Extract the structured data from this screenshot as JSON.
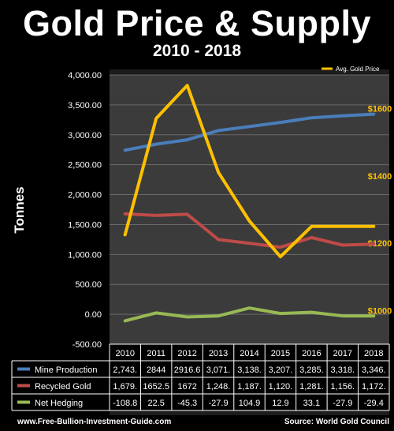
{
  "page": {
    "title": "Gold Price & Supply",
    "subtitle": "2010 - 2018",
    "website": "www.Free-Bullion-Investment-Guide.com",
    "source": "Source: World Gold Council"
  },
  "chart_data": {
    "type": "line",
    "title": "Gold Price & Supply",
    "subtitle": "2010 - 2018",
    "ylabel": "Tonnes",
    "xlabel": "",
    "ylim": [
      -500,
      4000
    ],
    "yticks": [
      -500,
      0,
      500,
      1000,
      1500,
      2000,
      2500,
      3000,
      3500,
      4000
    ],
    "ytick_labels": [
      "-500.00",
      "0.00",
      "500.00",
      "1,000.00",
      "1,500.00",
      "2,000.00",
      "2,500.00",
      "3,000.00",
      "3,500.00",
      "4,000.00"
    ],
    "y2lim": [
      900,
      1700
    ],
    "y2ticks": [
      1000,
      1200,
      1400,
      1600
    ],
    "y2tick_labels": [
      "$1000",
      "$1200",
      "$1400",
      "$1600"
    ],
    "categories": [
      "2010",
      "2011",
      "2012",
      "2013",
      "2014",
      "2015",
      "2016",
      "2017",
      "2018"
    ],
    "grid": true,
    "legend": "top-right",
    "series": [
      {
        "name": "Mine Production",
        "axis": "left",
        "color": "#4a7ebb",
        "in_table": true,
        "values": [
          2743,
          2844,
          2916.6,
          3071,
          3138,
          3207,
          3285,
          3318,
          3346
        ],
        "labels": [
          "2,743.",
          "2844",
          "2916.6",
          "3,071.",
          "3,138.",
          "3,207.",
          "3,285.",
          "3,318.",
          "3,346."
        ]
      },
      {
        "name": "Recycled Gold",
        "axis": "left",
        "color": "#be4b48",
        "in_table": true,
        "values": [
          1679,
          1652.5,
          1672,
          1248,
          1187,
          1120,
          1281,
          1156,
          1172
        ],
        "labels": [
          "1,679.",
          "1652.5",
          "1672",
          "1,248.",
          "1,187.",
          "1,120.",
          "1,281.",
          "1,156.",
          "1,172."
        ]
      },
      {
        "name": "Net Hedging",
        "axis": "left",
        "color": "#98b954",
        "in_table": true,
        "values": [
          -108.8,
          22.5,
          -45.3,
          -27.9,
          104.9,
          12.9,
          33.1,
          -27.9,
          -29.4
        ],
        "labels": [
          "-108.8",
          "22.5",
          "-45.3",
          "-27.9",
          "104.9",
          "12.9",
          "33.1",
          "-27.9",
          "-29.4"
        ]
      },
      {
        "name": "Avg. Gold Price",
        "axis": "right",
        "color": "#ffc000",
        "in_table": false,
        "values": [
          1225,
          1571,
          1669,
          1411,
          1266,
          1160,
          1250,
          1250,
          1250
        ]
      }
    ]
  }
}
